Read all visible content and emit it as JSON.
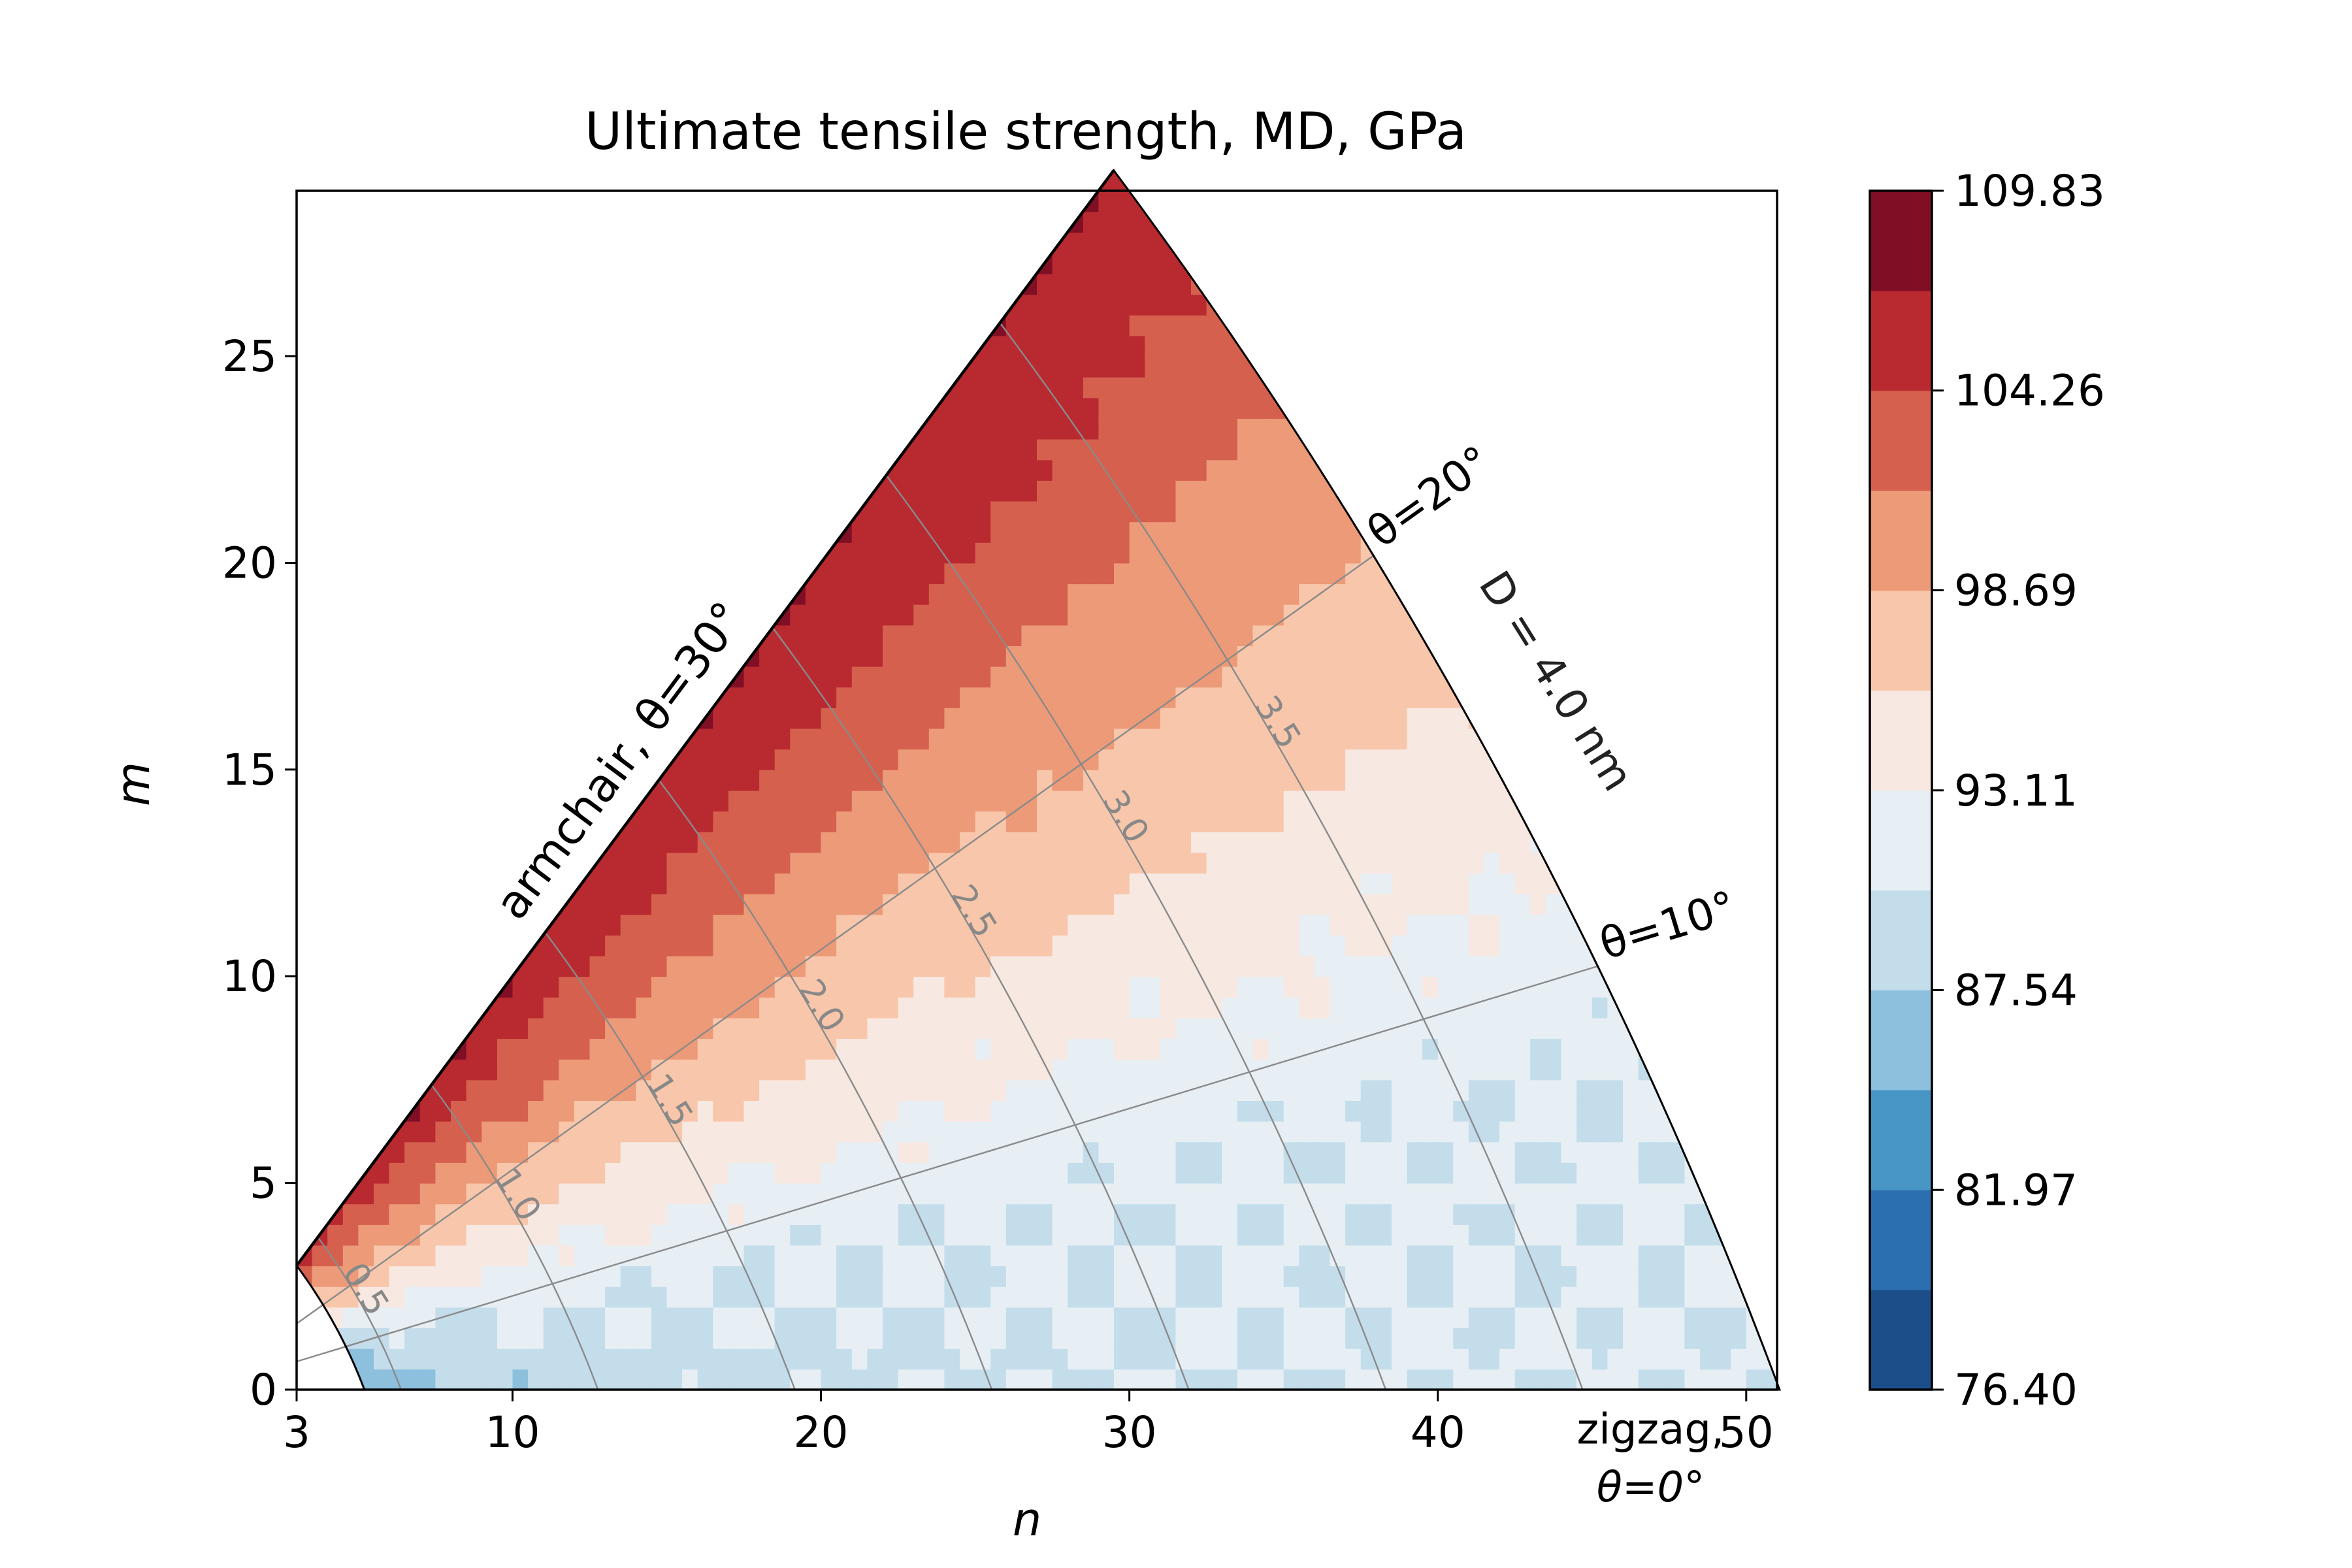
{
  "chart_data": {
    "type": "heatmap",
    "title": "Ultimate tensile strength, MD, GPa",
    "xlabel": "n",
    "ylabel": "m",
    "xlim": [
      3,
      51
    ],
    "ylim": [
      0,
      29
    ],
    "x_ticks": [
      3,
      10,
      20,
      30,
      40,
      50
    ],
    "y_ticks": [
      0,
      5,
      10,
      15,
      20,
      25
    ],
    "grid": false,
    "colorbar": {
      "min": 76.4,
      "max": 109.83,
      "tick_values": [
        76.4,
        81.97,
        87.54,
        93.11,
        98.69,
        104.26,
        109.83
      ],
      "tick_labels": [
        "76.40",
        "81.97",
        "87.54",
        "93.11",
        "98.69",
        "104.26",
        "109.83"
      ],
      "level_colors": [
        "#1c4f8a",
        "#2c6fb0",
        "#4896c6",
        "#8cc0dd",
        "#c4ddeb",
        "#e7eff4",
        "#f7e8e1",
        "#f8c6aa",
        "#ec9a77",
        "#d5604e",
        "#b82a30",
        "#800f25"
      ]
    },
    "approx_field_description": "strength increases with chiral angle; highest near armchair edge",
    "diameter_contours": [
      {
        "label": "0.5",
        "D": 0.5
      },
      {
        "label": "1.0",
        "D": 1.0
      },
      {
        "label": "1.5",
        "D": 1.5
      },
      {
        "label": "2.0",
        "D": 2.0
      },
      {
        "label": "2.5",
        "D": 2.5
      },
      {
        "label": "3.0",
        "D": 3.0
      },
      {
        "label": "3.5",
        "D": 3.5
      },
      {
        "label": "",
        "D": 4.0
      }
    ],
    "angle_lines": [
      {
        "label": "θ=10°",
        "theta": 10
      },
      {
        "label": "θ=20°",
        "theta": 20
      }
    ],
    "annotations": {
      "armchair": "armchair, θ=30°",
      "zigzag_line1": "zigzag,",
      "zigzag_line2": "θ=0°",
      "diameter_boundary": "D = 4.0 nm"
    }
  }
}
